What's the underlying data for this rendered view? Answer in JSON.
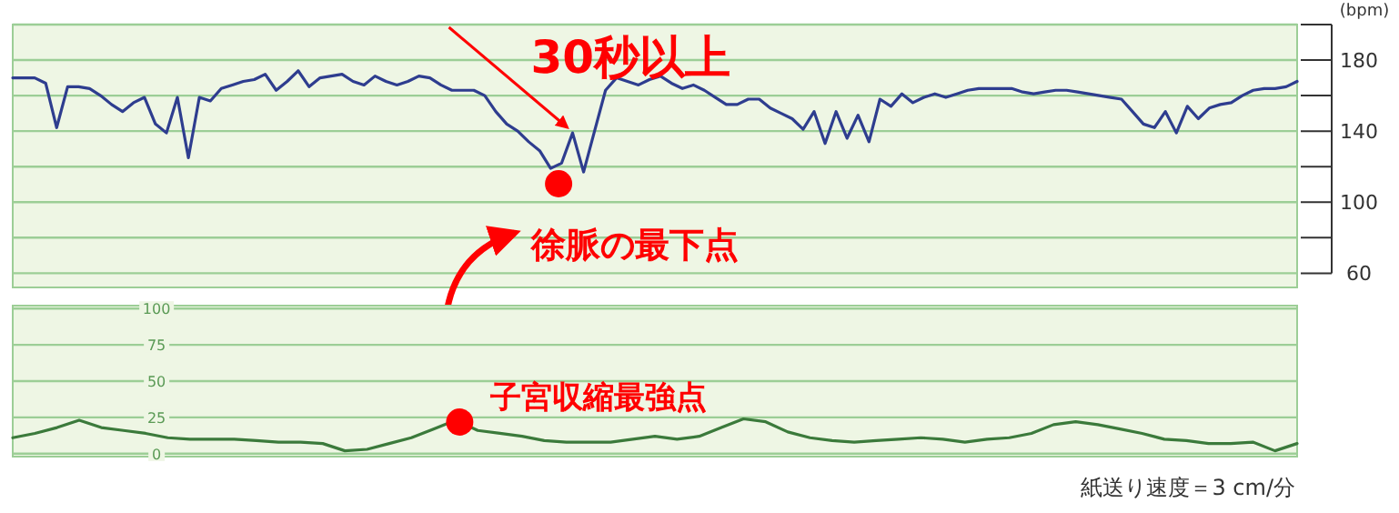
{
  "chart_data": [
    {
      "type": "line",
      "ylabel": "(bpm)",
      "ylim": [
        52,
        200
      ],
      "categories": [
        null,
        null,
        null,
        null,
        null,
        null,
        null,
        null,
        null,
        null,
        null,
        null,
        null,
        null,
        null,
        null,
        null,
        null,
        null,
        null,
        null,
        null,
        null,
        null,
        null,
        null,
        null,
        null,
        null,
        null,
        null,
        null,
        null,
        null,
        null,
        null,
        null,
        null,
        null,
        null,
        null,
        null,
        null,
        null,
        null,
        null,
        null,
        null,
        null,
        null,
        null,
        null,
        null,
        null,
        null,
        null,
        null,
        null,
        null,
        null,
        null,
        null,
        null,
        null,
        null,
        null,
        null,
        null,
        null,
        null,
        null,
        null,
        null,
        null,
        null,
        null,
        null,
        null,
        null,
        null,
        null,
        null,
        null,
        null,
        null,
        null,
        null,
        null,
        null,
        null,
        null,
        null,
        null,
        null,
        null,
        null,
        null,
        null,
        null,
        null,
        null,
        null,
        null,
        null,
        null,
        null,
        null,
        null,
        null,
        null,
        null,
        null,
        null,
        null,
        null,
        null,
        null,
        null
      ],
      "yticks": [
        {
          "value": 200,
          "label": null
        },
        180,
        {
          "value": 160,
          "label": null
        },
        140,
        {
          "value": 120,
          "label": null
        },
        100,
        {
          "value": 80,
          "label": null
        },
        60
      ],
      "tick_labels": "y",
      "grid": "y",
      "series": [
        {
          "color": "#2e3d8f",
          "values": [
            170,
            170,
            170,
            167,
            142,
            165,
            165,
            164,
            160,
            155,
            151,
            156,
            159,
            144,
            139,
            159,
            125,
            159,
            157,
            164,
            166,
            168,
            169,
            172,
            163,
            168,
            174,
            165,
            170,
            171,
            172,
            168,
            166,
            171,
            168,
            166,
            168,
            171,
            170,
            166,
            163,
            163,
            163,
            160,
            151,
            144,
            140,
            134,
            129,
            119,
            122,
            139,
            117,
            140,
            163,
            170,
            168,
            166,
            169,
            171,
            167,
            164,
            166,
            163,
            159,
            155,
            155,
            158,
            158,
            153,
            150,
            147,
            141,
            151,
            133,
            151,
            136,
            149,
            134,
            158,
            154,
            161,
            156,
            159,
            161,
            159,
            161,
            163,
            164,
            164,
            164,
            164,
            162,
            161,
            162,
            163,
            163,
            162,
            161,
            160,
            159,
            158,
            151,
            144,
            142,
            151,
            139,
            154,
            147,
            153,
            155,
            156,
            160,
            163,
            164,
            164,
            165,
            168
          ]
        }
      ],
      "annotations": [
        "30秒以上",
        "徐脈の最下点"
      ]
    },
    {
      "type": "line",
      "ylim": [
        -2,
        102
      ],
      "categories": [
        null,
        null,
        null,
        null,
        null,
        null,
        null,
        null,
        null,
        null,
        null,
        null,
        null,
        null,
        null,
        null,
        null,
        null,
        null,
        null,
        null,
        null,
        null,
        null,
        null,
        null,
        null,
        null,
        null,
        null,
        null,
        null,
        null,
        null,
        null,
        null,
        null,
        null,
        null,
        null,
        null,
        null,
        null,
        null,
        null,
        null,
        null,
        null,
        null,
        null,
        null,
        null,
        null,
        null,
        null,
        null,
        null,
        null,
        null
      ],
      "yticks": [
        0,
        25,
        50,
        75,
        100
      ],
      "tick_labels": "y",
      "grid": "y",
      "series": [
        {
          "color": "#3b7a3b",
          "values": [
            11,
            14,
            18,
            23,
            18,
            16,
            14,
            11,
            10,
            10,
            10,
            9,
            8,
            8,
            7,
            2,
            3,
            7,
            11,
            17,
            23,
            16,
            14,
            12,
            9,
            8,
            8,
            8,
            10,
            12,
            10,
            12,
            18,
            24,
            22,
            15,
            11,
            9,
            8,
            9,
            10,
            11,
            10,
            8,
            10,
            11,
            14,
            20,
            22,
            20,
            17,
            14,
            10,
            9,
            7,
            7,
            8,
            2,
            7
          ]
        }
      ],
      "annotations": [
        "子宮収縮最強点",
        "紙送り速度＝3 cm/分"
      ]
    }
  ]
}
